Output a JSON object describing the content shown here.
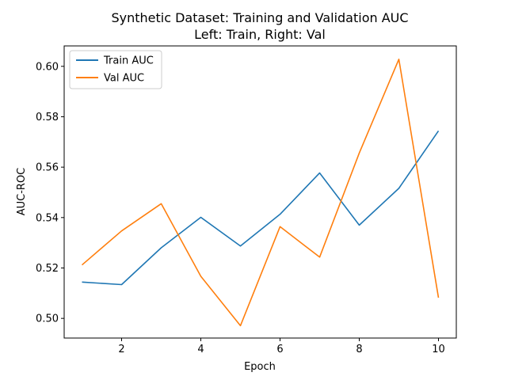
{
  "chart_data": {
    "type": "line",
    "title_line1": "Synthetic Dataset: Training and Validation AUC",
    "title_line2": "Left: Train, Right: Val",
    "xlabel": "Epoch",
    "ylabel": "AUC-ROC",
    "x": [
      1,
      2,
      3,
      4,
      5,
      6,
      7,
      8,
      9,
      10
    ],
    "xlim": [
      0.55,
      10.45
    ],
    "ylim": [
      0.4922,
      0.6081
    ],
    "xticks": [
      "2",
      "4",
      "6",
      "8",
      "10"
    ],
    "yticks": [
      "0.50",
      "0.52",
      "0.54",
      "0.56",
      "0.58",
      "0.60"
    ],
    "grid": false,
    "legend_position": "upper-left",
    "series": [
      {
        "name": "Train AUC",
        "color": "#1f77b4",
        "values": [
          0.5144,
          0.5134,
          0.528,
          0.5401,
          0.5287,
          0.5413,
          0.5577,
          0.537,
          0.5516,
          0.5744
        ]
      },
      {
        "name": "Val AUC",
        "color": "#ff7f0e",
        "values": [
          0.5212,
          0.5347,
          0.5455,
          0.5167,
          0.4971,
          0.5364,
          0.5243,
          0.5656,
          0.6028,
          0.5082
        ]
      }
    ]
  }
}
